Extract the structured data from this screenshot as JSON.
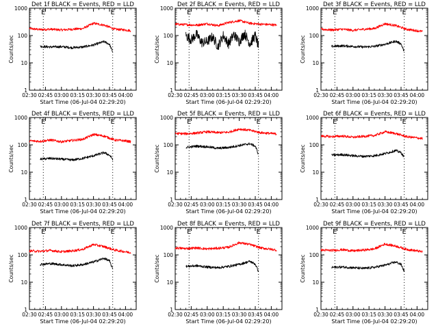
{
  "figure": {
    "x_start_seconds": 0,
    "x_end_seconds": 6000
  },
  "chart_data": [
    {
      "type": "line",
      "title": "Det 1f BLACK = Events, RED = LLD",
      "xlabel": "Start Time (06-Jul-04 02:29:20)",
      "ylabel": "Counts/sec",
      "x_tick_labels": [
        "02:30",
        "02:45",
        "03:00",
        "03:15",
        "03:30",
        "03:45",
        "04:00"
      ],
      "y_tick_labels": [
        "1",
        "10",
        "100",
        "1000"
      ],
      "ylim": [
        1,
        1000
      ],
      "y_scale": "log",
      "markers": [
        {
          "label": "E",
          "time": "02:43"
        },
        {
          "label": "E",
          "time": "03:48"
        }
      ],
      "series": [
        {
          "color": "#ff0000",
          "x": [
            "02:30",
            "02:40",
            "02:50",
            "03:00",
            "03:10",
            "03:20",
            "03:30",
            "03:40",
            "03:50",
            "04:00",
            "04:05"
          ],
          "values": [
            180,
            165,
            170,
            160,
            170,
            180,
            280,
            240,
            170,
            160,
            150
          ]
        },
        {
          "color": "#000000",
          "x": [
            "02:40",
            "02:50",
            "03:00",
            "03:10",
            "03:20",
            "03:30",
            "03:40",
            "03:45",
            "03:48"
          ],
          "values": [
            40,
            38,
            39,
            36,
            38,
            45,
            60,
            48,
            25
          ]
        }
      ]
    },
    {
      "type": "line",
      "title": "Det 2f BLACK = Events, RED = LLD",
      "xlabel": "Start Time (06-Jul-04 02:29:20)",
      "ylabel": "Counts/sec",
      "x_tick_labels": [
        "02:30",
        "02:45",
        "03:00",
        "03:15",
        "03:30",
        "03:45",
        "04:00"
      ],
      "y_tick_labels": [
        "1",
        "10",
        "100",
        "1000"
      ],
      "ylim": [
        1,
        1000
      ],
      "y_scale": "log",
      "markers": [
        {
          "label": "E",
          "time": "02:43"
        },
        {
          "label": "E",
          "time": "03:48"
        }
      ],
      "series": [
        {
          "color": "#ff0000",
          "x": [
            "02:30",
            "02:40",
            "02:50",
            "03:00",
            "03:10",
            "03:20",
            "03:30",
            "03:40",
            "03:50",
            "04:00",
            "04:05"
          ],
          "values": [
            260,
            250,
            240,
            270,
            230,
            300,
            350,
            280,
            260,
            250,
            240
          ]
        },
        {
          "color": "#000000",
          "x": [
            "02:40",
            "02:45",
            "02:50",
            "02:55",
            "03:00",
            "03:05",
            "03:10",
            "03:15",
            "03:20",
            "03:25",
            "03:30",
            "03:35",
            "03:40",
            "03:45",
            "03:48"
          ],
          "values": [
            100,
            70,
            110,
            55,
            60,
            90,
            40,
            100,
            50,
            110,
            60,
            120,
            50,
            100,
            40
          ]
        }
      ]
    },
    {
      "type": "line",
      "title": "Det 3f BLACK = Events, RED = LLD",
      "xlabel": "Start Time (06-Jul-04 02:29:20)",
      "ylabel": "Counts/sec",
      "x_tick_labels": [
        "02:30",
        "02:45",
        "03:00",
        "03:15",
        "03:30",
        "03:45",
        "04:00"
      ],
      "y_tick_labels": [
        "1",
        "10",
        "100",
        "1000"
      ],
      "ylim": [
        1,
        1000
      ],
      "y_scale": "log",
      "markers": [
        {
          "label": "E",
          "time": "02:43"
        },
        {
          "label": "E",
          "time": "03:48"
        }
      ],
      "series": [
        {
          "color": "#ff0000",
          "x": [
            "02:30",
            "02:40",
            "02:50",
            "03:00",
            "03:10",
            "03:20",
            "03:30",
            "03:40",
            "03:50",
            "04:00",
            "04:05"
          ],
          "values": [
            170,
            160,
            170,
            155,
            170,
            180,
            270,
            230,
            170,
            150,
            140
          ]
        },
        {
          "color": "#000000",
          "x": [
            "02:40",
            "02:50",
            "03:00",
            "03:10",
            "03:20",
            "03:30",
            "03:40",
            "03:45",
            "03:48"
          ],
          "values": [
            40,
            42,
            40,
            38,
            40,
            48,
            62,
            50,
            25
          ]
        }
      ]
    },
    {
      "type": "line",
      "title": "Det 4f BLACK = Events, RED = LLD",
      "xlabel": "Start Time (06-Jul-04 02:29:20)",
      "ylabel": "Counts/sec",
      "x_tick_labels": [
        "02:30",
        "02:45",
        "03:00",
        "03:15",
        "03:30",
        "03:45",
        "04:00"
      ],
      "y_tick_labels": [
        "1",
        "10",
        "100",
        "1000"
      ],
      "ylim": [
        1,
        1000
      ],
      "y_scale": "log",
      "markers": [
        {
          "label": "E",
          "time": "02:43"
        },
        {
          "label": "E",
          "time": "03:48"
        }
      ],
      "series": [
        {
          "color": "#ff0000",
          "x": [
            "02:30",
            "02:40",
            "02:50",
            "03:00",
            "03:10",
            "03:20",
            "03:30",
            "03:40",
            "03:50",
            "04:00",
            "04:05"
          ],
          "values": [
            140,
            135,
            150,
            130,
            145,
            160,
            240,
            210,
            150,
            140,
            130
          ]
        },
        {
          "color": "#000000",
          "x": [
            "02:40",
            "02:50",
            "03:00",
            "03:10",
            "03:20",
            "03:30",
            "03:40",
            "03:45",
            "03:48"
          ],
          "values": [
            30,
            32,
            30,
            28,
            32,
            40,
            52,
            42,
            30
          ]
        }
      ]
    },
    {
      "type": "line",
      "title": "Det 5f BLACK = Events, RED = LLD",
      "xlabel": "Start Time (06-Jul-04 02:29:20)",
      "ylabel": "Counts/sec",
      "x_tick_labels": [
        "02:30",
        "02:45",
        "03:00",
        "03:15",
        "03:30",
        "03:45",
        "04:00"
      ],
      "y_tick_labels": [
        "1",
        "10",
        "100",
        "1000"
      ],
      "ylim": [
        1,
        1000
      ],
      "y_scale": "log",
      "markers": [
        {
          "label": "E",
          "time": "02:43"
        },
        {
          "label": "E",
          "time": "03:48"
        }
      ],
      "series": [
        {
          "color": "#ff0000",
          "x": [
            "02:30",
            "02:40",
            "02:50",
            "03:00",
            "03:10",
            "03:20",
            "03:30",
            "03:40",
            "03:50",
            "04:00",
            "04:05"
          ],
          "values": [
            260,
            255,
            270,
            300,
            280,
            290,
            380,
            340,
            280,
            260,
            250
          ]
        },
        {
          "color": "#000000",
          "x": [
            "02:40",
            "02:50",
            "03:00",
            "03:10",
            "03:20",
            "03:30",
            "03:40",
            "03:45",
            "03:48"
          ],
          "values": [
            80,
            90,
            85,
            75,
            80,
            95,
            110,
            90,
            45
          ]
        }
      ]
    },
    {
      "type": "line",
      "title": "Det 6f BLACK = Events, RED = LLD",
      "xlabel": "Start Time (06-Jul-04 02:29:20)",
      "ylabel": "Counts/sec",
      "x_tick_labels": [
        "02:30",
        "02:45",
        "03:00",
        "03:15",
        "03:30",
        "03:45",
        "04:00"
      ],
      "y_tick_labels": [
        "1",
        "10",
        "100",
        "1000"
      ],
      "ylim": [
        1,
        1000
      ],
      "y_scale": "log",
      "markers": [
        {
          "label": "E",
          "time": "02:43"
        },
        {
          "label": "E",
          "time": "03:48"
        }
      ],
      "series": [
        {
          "color": "#ff0000",
          "x": [
            "02:30",
            "02:40",
            "02:50",
            "03:00",
            "03:10",
            "03:20",
            "03:30",
            "03:40",
            "03:50",
            "04:00",
            "04:05"
          ],
          "values": [
            210,
            200,
            210,
            190,
            205,
            220,
            300,
            260,
            200,
            180,
            170
          ]
        },
        {
          "color": "#000000",
          "x": [
            "02:40",
            "02:50",
            "03:00",
            "03:10",
            "03:20",
            "03:30",
            "03:40",
            "03:45",
            "03:48"
          ],
          "values": [
            42,
            44,
            40,
            38,
            40,
            48,
            62,
            52,
            35
          ]
        }
      ]
    },
    {
      "type": "line",
      "title": "Det 7f BLACK = Events, RED = LLD",
      "xlabel": "Start Time (06-Jul-04 02:29:20)",
      "ylabel": "Counts/sec",
      "x_tick_labels": [
        "02:30",
        "02:45",
        "03:00",
        "03:15",
        "03:30",
        "03:45",
        "04:00"
      ],
      "y_tick_labels": [
        "1",
        "10",
        "100",
        "1000"
      ],
      "ylim": [
        1,
        1000
      ],
      "y_scale": "log",
      "markers": [
        {
          "label": "E",
          "time": "02:43"
        },
        {
          "label": "E",
          "time": "03:48"
        }
      ],
      "series": [
        {
          "color": "#ff0000",
          "x": [
            "02:30",
            "02:40",
            "02:50",
            "03:00",
            "03:10",
            "03:20",
            "03:30",
            "03:40",
            "03:50",
            "04:00",
            "04:05"
          ],
          "values": [
            140,
            135,
            145,
            130,
            140,
            160,
            240,
            200,
            150,
            130,
            120
          ]
        },
        {
          "color": "#000000",
          "x": [
            "02:40",
            "02:50",
            "03:00",
            "03:10",
            "03:20",
            "03:30",
            "03:40",
            "03:45",
            "03:48"
          ],
          "values": [
            45,
            48,
            44,
            40,
            44,
            55,
            75,
            60,
            30
          ]
        }
      ]
    },
    {
      "type": "line",
      "title": "Det 8f BLACK = Events, RED = LLD",
      "xlabel": "Start Time (06-Jul-04 02:29:20)",
      "ylabel": "Counts/sec",
      "x_tick_labels": [
        "02:30",
        "02:45",
        "03:00",
        "03:15",
        "03:30",
        "03:45",
        "04:00"
      ],
      "y_tick_labels": [
        "1",
        "10",
        "100",
        "1000"
      ],
      "ylim": [
        1,
        1000
      ],
      "y_scale": "log",
      "markers": [
        {
          "label": "E",
          "time": "02:43"
        },
        {
          "label": "E",
          "time": "03:48"
        }
      ],
      "series": [
        {
          "color": "#ff0000",
          "x": [
            "02:30",
            "02:40",
            "02:50",
            "03:00",
            "03:10",
            "03:20",
            "03:30",
            "03:40",
            "03:50",
            "04:00",
            "04:05"
          ],
          "values": [
            180,
            170,
            180,
            165,
            175,
            190,
            280,
            240,
            180,
            160,
            150
          ]
        },
        {
          "color": "#000000",
          "x": [
            "02:40",
            "02:50",
            "03:00",
            "03:10",
            "03:20",
            "03:30",
            "03:40",
            "03:45",
            "03:48"
          ],
          "values": [
            38,
            40,
            36,
            34,
            38,
            45,
            58,
            46,
            25
          ]
        }
      ]
    },
    {
      "type": "line",
      "title": "Det 9f BLACK = Events, RED = LLD",
      "xlabel": "Start Time (06-Jul-04 02:29:20)",
      "ylabel": "Counts/sec",
      "x_tick_labels": [
        "02:30",
        "02:45",
        "03:00",
        "03:15",
        "03:30",
        "03:45",
        "04:00"
      ],
      "y_tick_labels": [
        "1",
        "10",
        "100",
        "1000"
      ],
      "ylim": [
        1,
        1000
      ],
      "y_scale": "log",
      "markers": [
        {
          "label": "E",
          "time": "02:43"
        },
        {
          "label": "E",
          "time": "03:48"
        }
      ],
      "series": [
        {
          "color": "#ff0000",
          "x": [
            "02:30",
            "02:40",
            "02:50",
            "03:00",
            "03:10",
            "03:20",
            "03:30",
            "03:40",
            "03:50",
            "04:00",
            "04:05"
          ],
          "values": [
            150,
            145,
            155,
            140,
            150,
            165,
            250,
            210,
            160,
            140,
            130
          ]
        },
        {
          "color": "#000000",
          "x": [
            "02:40",
            "02:50",
            "03:00",
            "03:10",
            "03:20",
            "03:30",
            "03:40",
            "03:45",
            "03:48"
          ],
          "values": [
            35,
            36,
            34,
            32,
            35,
            42,
            55,
            45,
            25
          ]
        }
      ]
    }
  ]
}
